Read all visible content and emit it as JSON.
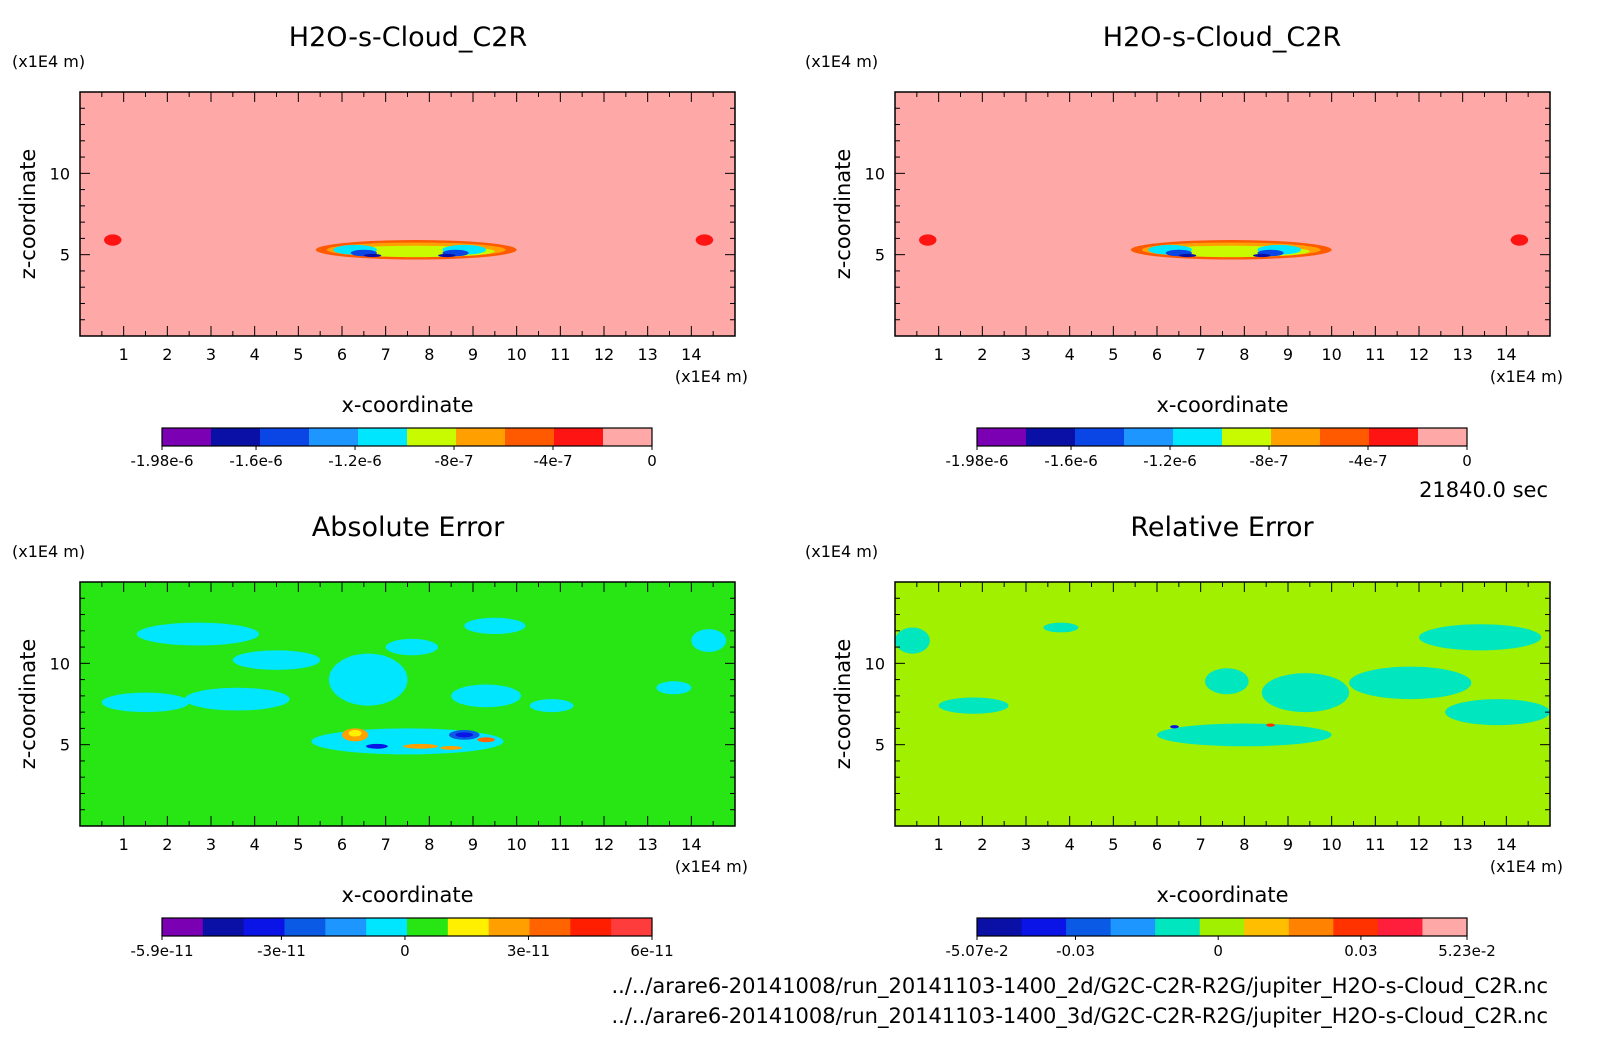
{
  "footer": {
    "time": "21840.0 sec",
    "file_2d": "../../arare6-20141008/run_20141103-1400_2d/G2C-C2R-R2G/jupiter_H2O-s-Cloud_C2R.nc",
    "file_3d": "../../arare6-20141008/run_20141103-1400_3d/G2C-C2R-R2G/jupiter_H2O-s-Cloud_C2R.nc"
  },
  "chart_data": [
    {
      "type": "heatmap",
      "title": "H2O-s-Cloud_C2R",
      "xlabel": "x-coordinate",
      "ylabel": "z-coordinate",
      "x_unit": "(x1E4 m)",
      "y_unit": "(x1E4 m)",
      "xlim": [
        0,
        15
      ],
      "ylim": [
        0,
        15
      ],
      "x_ticks": [
        "1",
        "2",
        "3",
        "4",
        "5",
        "6",
        "7",
        "8",
        "9",
        "10",
        "11",
        "12",
        "13",
        "14"
      ],
      "y_ticks": [
        "5",
        "10"
      ],
      "background_value": 0,
      "colorbar": {
        "colors": [
          "#7b00b4",
          "#0a0fa5",
          "#0a46e6",
          "#1e96ff",
          "#00e6ff",
          "#c8fa00",
          "#ffa000",
          "#ff5a00",
          "#ff1414",
          "#ffa8a8"
        ],
        "tick_labels": [
          "-1.98e-6",
          "-1.6e-6",
          "-1.2e-6",
          "-8e-7",
          "-4e-7",
          "0"
        ],
        "tick_values": [
          -1.98e-06,
          -1.6e-06,
          -1.2e-06,
          -8e-07,
          -4e-07,
          0
        ]
      },
      "background_color": "#ffa8a8",
      "features": [
        {
          "x": 0.75,
          "z": 5.9,
          "rx": 0.2,
          "rz": 0.35,
          "color": "#ff1414"
        },
        {
          "x": 14.3,
          "z": 5.9,
          "rx": 0.2,
          "rz": 0.35,
          "color": "#ff1414"
        },
        {
          "x": 7.7,
          "z": 5.3,
          "rx": 2.3,
          "rz": 0.6,
          "color": "#ff5a00"
        },
        {
          "x": 7.7,
          "z": 5.3,
          "rx": 2.05,
          "rz": 0.45,
          "color": "#ffa000"
        },
        {
          "x": 7.7,
          "z": 5.2,
          "rx": 1.8,
          "rz": 0.35,
          "color": "#c8fa00"
        },
        {
          "x": 6.3,
          "z": 5.3,
          "rx": 0.5,
          "rz": 0.3,
          "color": "#00e6ff"
        },
        {
          "x": 8.8,
          "z": 5.3,
          "rx": 0.5,
          "rz": 0.3,
          "color": "#00e6ff"
        },
        {
          "x": 6.5,
          "z": 5.1,
          "rx": 0.3,
          "rz": 0.2,
          "color": "#0a46e6"
        },
        {
          "x": 8.6,
          "z": 5.1,
          "rx": 0.3,
          "rz": 0.2,
          "color": "#0a46e6"
        },
        {
          "x": 6.7,
          "z": 4.95,
          "rx": 0.2,
          "rz": 0.1,
          "color": "#0a0fa5"
        },
        {
          "x": 8.4,
          "z": 4.95,
          "rx": 0.2,
          "rz": 0.1,
          "color": "#0a0fa5"
        }
      ]
    },
    {
      "type": "heatmap",
      "title": "H2O-s-Cloud_C2R",
      "xlabel": "x-coordinate",
      "ylabel": "z-coordinate",
      "x_unit": "(x1E4 m)",
      "y_unit": "(x1E4 m)",
      "xlim": [
        0,
        15
      ],
      "ylim": [
        0,
        15
      ],
      "x_ticks": [
        "1",
        "2",
        "3",
        "4",
        "5",
        "6",
        "7",
        "8",
        "9",
        "10",
        "11",
        "12",
        "13",
        "14"
      ],
      "y_ticks": [
        "5",
        "10"
      ],
      "background_value": 0,
      "colorbar": {
        "colors": [
          "#7b00b4",
          "#0a0fa5",
          "#0a46e6",
          "#1e96ff",
          "#00e6ff",
          "#c8fa00",
          "#ffa000",
          "#ff5a00",
          "#ff1414",
          "#ffa8a8"
        ],
        "tick_labels": [
          "-1.98e-6",
          "-1.6e-6",
          "-1.2e-6",
          "-8e-7",
          "-4e-7",
          "0"
        ],
        "tick_values": [
          -1.98e-06,
          -1.6e-06,
          -1.2e-06,
          -8e-07,
          -4e-07,
          0
        ]
      },
      "background_color": "#ffa8a8",
      "features": [
        {
          "x": 0.75,
          "z": 5.9,
          "rx": 0.2,
          "rz": 0.35,
          "color": "#ff1414"
        },
        {
          "x": 14.3,
          "z": 5.9,
          "rx": 0.2,
          "rz": 0.35,
          "color": "#ff1414"
        },
        {
          "x": 7.7,
          "z": 5.3,
          "rx": 2.3,
          "rz": 0.6,
          "color": "#ff5a00"
        },
        {
          "x": 7.7,
          "z": 5.3,
          "rx": 2.05,
          "rz": 0.45,
          "color": "#ffa000"
        },
        {
          "x": 7.7,
          "z": 5.2,
          "rx": 1.8,
          "rz": 0.35,
          "color": "#c8fa00"
        },
        {
          "x": 6.3,
          "z": 5.3,
          "rx": 0.5,
          "rz": 0.3,
          "color": "#00e6ff"
        },
        {
          "x": 8.8,
          "z": 5.3,
          "rx": 0.5,
          "rz": 0.3,
          "color": "#00e6ff"
        },
        {
          "x": 6.5,
          "z": 5.1,
          "rx": 0.3,
          "rz": 0.2,
          "color": "#0a46e6"
        },
        {
          "x": 8.6,
          "z": 5.1,
          "rx": 0.3,
          "rz": 0.2,
          "color": "#0a46e6"
        },
        {
          "x": 6.7,
          "z": 4.95,
          "rx": 0.2,
          "rz": 0.1,
          "color": "#0a0fa5"
        },
        {
          "x": 8.4,
          "z": 4.95,
          "rx": 0.2,
          "rz": 0.1,
          "color": "#0a0fa5"
        }
      ]
    },
    {
      "type": "heatmap",
      "title": "Absolute Error",
      "xlabel": "x-coordinate",
      "ylabel": "z-coordinate",
      "x_unit": "(x1E4 m)",
      "y_unit": "(x1E4 m)",
      "xlim": [
        0,
        15
      ],
      "ylim": [
        0,
        15
      ],
      "x_ticks": [
        "1",
        "2",
        "3",
        "4",
        "5",
        "6",
        "7",
        "8",
        "9",
        "10",
        "11",
        "12",
        "13",
        "14"
      ],
      "y_ticks": [
        "5",
        "10"
      ],
      "background_value": 0,
      "colorbar": {
        "colors": [
          "#7b00b4",
          "#0a0fa5",
          "#0a14e6",
          "#0a5ae6",
          "#1e96ff",
          "#00e6ff",
          "#28e614",
          "#fff000",
          "#ffa000",
          "#ff6400",
          "#ff1e00",
          "#ff3c3c"
        ],
        "tick_labels": [
          "-5.9e-11",
          "-3e-11",
          "0",
          "3e-11",
          "6e-11"
        ],
        "tick_values": [
          -5.9e-11,
          -3e-11,
          0,
          3e-11,
          6e-11
        ]
      },
      "background_color": "#28e614",
      "features": [
        {
          "x": 2.7,
          "z": 11.8,
          "rx": 1.4,
          "rz": 0.7,
          "color": "#00e6ff"
        },
        {
          "x": 4.5,
          "z": 10.2,
          "rx": 1.0,
          "rz": 0.6,
          "color": "#00e6ff"
        },
        {
          "x": 1.5,
          "z": 7.6,
          "rx": 1.0,
          "rz": 0.6,
          "color": "#00e6ff"
        },
        {
          "x": 3.6,
          "z": 7.8,
          "rx": 1.2,
          "rz": 0.7,
          "color": "#00e6ff"
        },
        {
          "x": 6.6,
          "z": 9.0,
          "rx": 0.9,
          "rz": 1.6,
          "color": "#00e6ff"
        },
        {
          "x": 7.6,
          "z": 11.0,
          "rx": 0.6,
          "rz": 0.5,
          "color": "#00e6ff"
        },
        {
          "x": 9.5,
          "z": 12.3,
          "rx": 0.7,
          "rz": 0.5,
          "color": "#00e6ff"
        },
        {
          "x": 9.3,
          "z": 8.0,
          "rx": 0.8,
          "rz": 0.7,
          "color": "#00e6ff"
        },
        {
          "x": 10.8,
          "z": 7.4,
          "rx": 0.5,
          "rz": 0.4,
          "color": "#00e6ff"
        },
        {
          "x": 14.4,
          "z": 11.4,
          "rx": 0.4,
          "rz": 0.7,
          "color": "#00e6ff"
        },
        {
          "x": 13.6,
          "z": 8.5,
          "rx": 0.4,
          "rz": 0.4,
          "color": "#00e6ff"
        },
        {
          "x": 7.5,
          "z": 5.2,
          "rx": 2.2,
          "rz": 0.8,
          "color": "#00e6ff"
        },
        {
          "x": 6.3,
          "z": 5.6,
          "rx": 0.3,
          "rz": 0.4,
          "color": "#ffa000"
        },
        {
          "x": 6.3,
          "z": 5.7,
          "rx": 0.15,
          "rz": 0.2,
          "color": "#fff000"
        },
        {
          "x": 8.8,
          "z": 5.6,
          "rx": 0.35,
          "rz": 0.3,
          "color": "#0a5ae6"
        },
        {
          "x": 8.8,
          "z": 5.6,
          "rx": 0.2,
          "rz": 0.15,
          "color": "#0a14e6"
        },
        {
          "x": 7.8,
          "z": 4.9,
          "rx": 0.4,
          "rz": 0.15,
          "color": "#ffa000"
        },
        {
          "x": 6.8,
          "z": 4.9,
          "rx": 0.25,
          "rz": 0.15,
          "color": "#0a14e6"
        },
        {
          "x": 9.3,
          "z": 5.3,
          "rx": 0.2,
          "rz": 0.15,
          "color": "#ff6400"
        },
        {
          "x": 8.5,
          "z": 4.8,
          "rx": 0.25,
          "rz": 0.12,
          "color": "#ffa000"
        }
      ]
    },
    {
      "type": "heatmap",
      "title": "Relative Error",
      "xlabel": "x-coordinate",
      "ylabel": "z-coordinate",
      "x_unit": "(x1E4 m)",
      "y_unit": "(x1E4 m)",
      "xlim": [
        0,
        15
      ],
      "ylim": [
        0,
        15
      ],
      "x_ticks": [
        "1",
        "2",
        "3",
        "4",
        "5",
        "6",
        "7",
        "8",
        "9",
        "10",
        "11",
        "12",
        "13",
        "14"
      ],
      "y_ticks": [
        "5",
        "10"
      ],
      "background_value": 0,
      "colorbar": {
        "colors": [
          "#0a0fa5",
          "#0a14e6",
          "#0a5ae6",
          "#1e96ff",
          "#00e6be",
          "#a0f000",
          "#ffbe00",
          "#ff8200",
          "#ff3200",
          "#ff1e3c",
          "#ffa8a8"
        ],
        "tick_labels": [
          "-5.07e-2",
          "-0.03",
          "0",
          "0.03",
          "5.23e-2"
        ],
        "tick_values": [
          -0.0507,
          -0.03,
          0,
          0.03,
          0.0523
        ]
      },
      "background_color": "#a0f000",
      "features": [
        {
          "x": 0.4,
          "z": 11.4,
          "rx": 0.4,
          "rz": 0.8,
          "color": "#00e6be"
        },
        {
          "x": 1.8,
          "z": 7.4,
          "rx": 0.8,
          "rz": 0.5,
          "color": "#00e6be"
        },
        {
          "x": 9.4,
          "z": 8.2,
          "rx": 1.0,
          "rz": 1.2,
          "color": "#00e6be"
        },
        {
          "x": 8.0,
          "z": 5.6,
          "rx": 2.0,
          "rz": 0.7,
          "color": "#00e6be"
        },
        {
          "x": 7.6,
          "z": 8.9,
          "rx": 0.5,
          "rz": 0.8,
          "color": "#00e6be"
        },
        {
          "x": 13.4,
          "z": 11.6,
          "rx": 1.4,
          "rz": 0.8,
          "color": "#00e6be"
        },
        {
          "x": 11.8,
          "z": 8.8,
          "rx": 1.4,
          "rz": 1.0,
          "color": "#00e6be"
        },
        {
          "x": 13.8,
          "z": 7.0,
          "rx": 1.2,
          "rz": 0.8,
          "color": "#00e6be"
        },
        {
          "x": 3.8,
          "z": 12.2,
          "rx": 0.4,
          "rz": 0.3,
          "color": "#00e6be"
        },
        {
          "x": 6.4,
          "z": 6.1,
          "rx": 0.1,
          "rz": 0.1,
          "color": "#0a14e6"
        },
        {
          "x": 8.6,
          "z": 6.2,
          "rx": 0.1,
          "rz": 0.1,
          "color": "#ff3200"
        }
      ]
    }
  ]
}
